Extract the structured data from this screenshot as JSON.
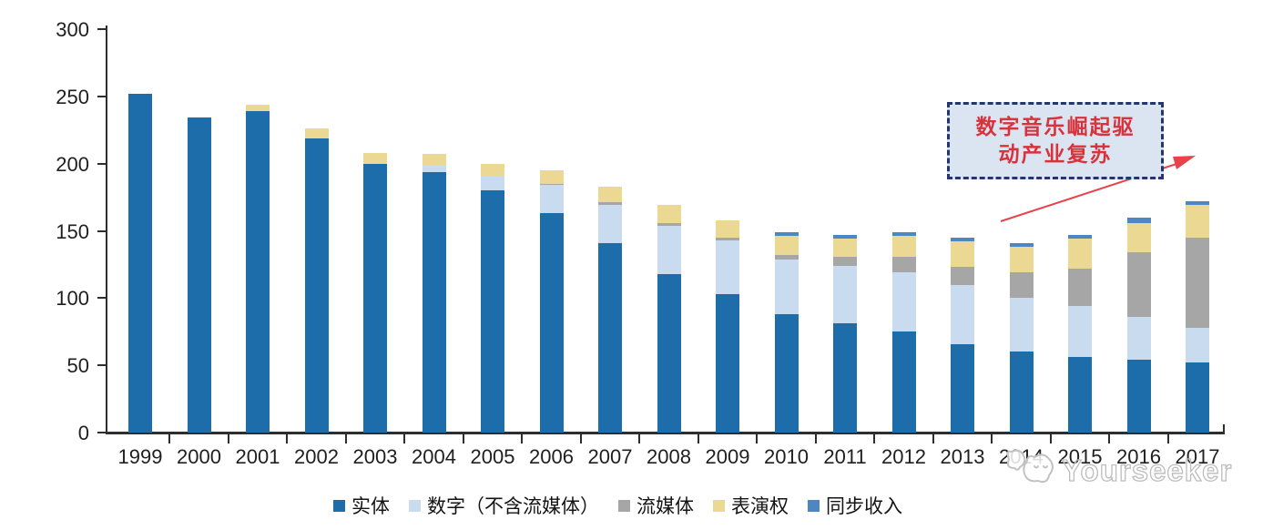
{
  "chart_data": {
    "type": "bar",
    "stacked": true,
    "title": "",
    "xlabel": "",
    "ylabel": "",
    "ylim": [
      0,
      300
    ],
    "yticks": [
      0,
      50,
      100,
      150,
      200,
      250,
      300
    ],
    "grid": false,
    "legend_position": "bottom",
    "categories": [
      "1999",
      "2000",
      "2001",
      "2002",
      "2003",
      "2004",
      "2005",
      "2006",
      "2007",
      "2008",
      "2009",
      "2010",
      "2011",
      "2012",
      "2013",
      "2014",
      "2015",
      "2016",
      "2017"
    ],
    "series": [
      {
        "name": "实体",
        "color": "#1e6dab",
        "values": [
          252,
          234,
          239,
          219,
          200,
          194,
          180,
          163,
          141,
          118,
          103,
          88,
          81,
          75,
          66,
          60,
          56,
          54,
          52
        ]
      },
      {
        "name": "数字（不含流媒体）",
        "color": "#c9dbef",
        "values": [
          0,
          0,
          0,
          0,
          0,
          5,
          11,
          21,
          28,
          36,
          40,
          41,
          43,
          44,
          44,
          40,
          38,
          32,
          26
        ]
      },
      {
        "name": "流媒体",
        "color": "#a6a6a6",
        "values": [
          0,
          0,
          0,
          0,
          0,
          0,
          0,
          1,
          2,
          2,
          2,
          3,
          7,
          12,
          13,
          19,
          28,
          48,
          67
        ]
      },
      {
        "name": "表演权",
        "color": "#ebd893",
        "values": [
          0,
          0,
          5,
          7,
          8,
          8,
          9,
          10,
          12,
          13,
          13,
          14,
          13,
          15,
          19,
          19,
          22,
          22,
          24
        ]
      },
      {
        "name": "同步收入",
        "color": "#4e86c4",
        "values": [
          0,
          0,
          0,
          0,
          0,
          0,
          0,
          0,
          0,
          0,
          0,
          3,
          3,
          3,
          3,
          3,
          3,
          4,
          3
        ]
      }
    ]
  },
  "annotation": {
    "line1": "数字音乐崛起驱",
    "line2": "动产业复苏",
    "text_color": "#d8333b",
    "border_color": "#24376b",
    "fill_color": "#dbe5f2",
    "arrow_color": "#e8434a"
  },
  "watermark": {
    "text": "Yourseeker",
    "logo": "cat-logo-icon",
    "color": "#bdbdbd"
  },
  "axis": {
    "color": "#2e2e2e",
    "label_color": "#1f1f1f"
  }
}
